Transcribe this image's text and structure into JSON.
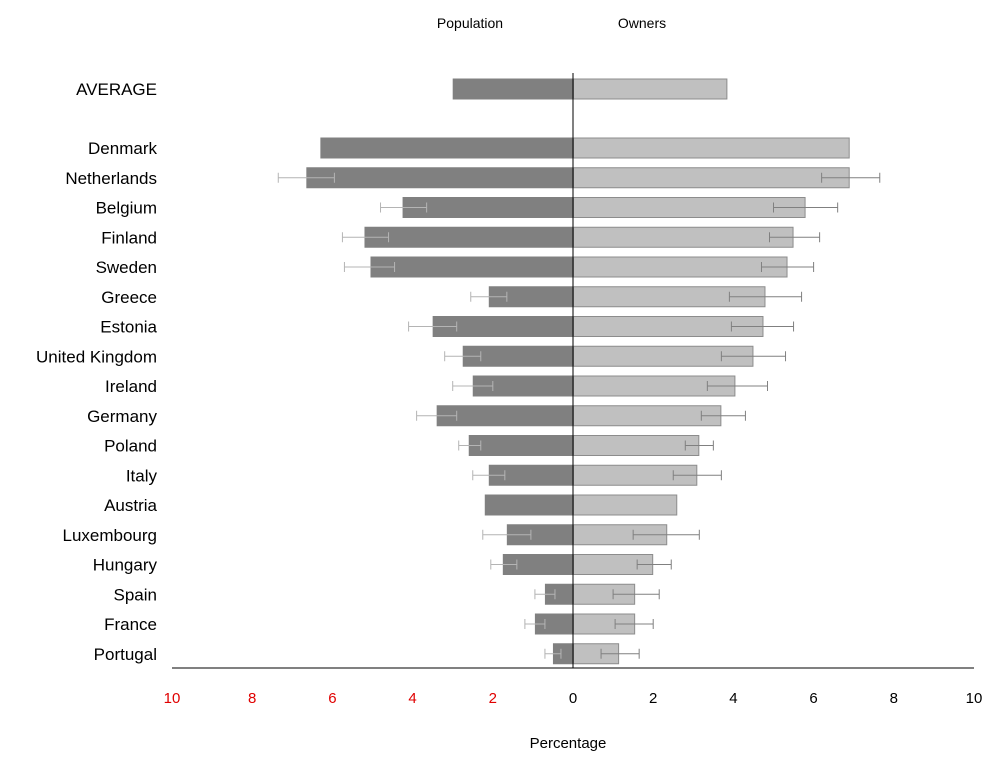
{
  "chart_data": {
    "type": "bar",
    "orientation": "horizontal-butterfly",
    "title": "",
    "xlabel": "Percentage",
    "ylabel": "",
    "xlim": [
      -10,
      10
    ],
    "xticks": [
      -10,
      -8,
      -6,
      -4,
      -2,
      0,
      2,
      4,
      6,
      8,
      10
    ],
    "xtick_labels": [
      "10",
      "8",
      "6",
      "4",
      "2",
      "0",
      "2",
      "4",
      "6",
      "8",
      "10"
    ],
    "grid": false,
    "legend": "top",
    "colors": {
      "population": "#808080",
      "owners": "#c0c0c0",
      "owners_stroke": "#8c8c8c",
      "negative_tick_labels": "#e00000",
      "positive_tick_labels": "#000000",
      "axis": "#000000",
      "error_bar_population": "#b4b4b4",
      "error_bar_owners": "#808080"
    },
    "average": {
      "label": "AVERAGE",
      "population": 3.0,
      "owners": 3.85
    },
    "categories": [
      "Denmark",
      "Netherlands",
      "Belgium",
      "Finland",
      "Sweden",
      "Greece",
      "Estonia",
      "United Kingdom",
      "Ireland",
      "Germany",
      "Poland",
      "Italy",
      "Austria",
      "Luxembourg",
      "Hungary",
      "Spain",
      "France",
      "Portugal"
    ],
    "series": [
      {
        "name": "Population",
        "values": [
          6.3,
          6.65,
          4.25,
          5.2,
          5.05,
          2.1,
          3.5,
          2.75,
          2.5,
          3.4,
          2.6,
          2.1,
          2.2,
          1.65,
          1.75,
          0.7,
          0.95,
          0.5
        ],
        "error_low": [
          null,
          7.35,
          4.8,
          5.75,
          5.7,
          2.55,
          4.1,
          3.2,
          3.0,
          3.9,
          2.85,
          2.5,
          null,
          2.25,
          2.05,
          0.95,
          1.2,
          0.7
        ],
        "error_high": [
          null,
          5.95,
          3.65,
          4.6,
          4.45,
          1.65,
          2.9,
          2.3,
          2.0,
          2.9,
          2.3,
          1.7,
          null,
          1.05,
          1.4,
          0.45,
          0.7,
          0.3
        ]
      },
      {
        "name": "Owners",
        "values": [
          6.9,
          6.9,
          5.8,
          5.5,
          5.35,
          4.8,
          4.75,
          4.5,
          4.05,
          3.7,
          3.15,
          3.1,
          2.6,
          2.35,
          2.0,
          1.55,
          1.55,
          1.15
        ],
        "error_low": [
          null,
          6.2,
          5.0,
          4.9,
          4.7,
          3.9,
          3.95,
          3.7,
          3.35,
          3.2,
          2.8,
          2.5,
          null,
          1.5,
          1.6,
          1.0,
          1.05,
          0.7
        ],
        "error_high": [
          null,
          7.65,
          6.6,
          6.15,
          6.0,
          5.7,
          5.5,
          5.3,
          4.85,
          4.3,
          3.5,
          3.7,
          null,
          3.15,
          2.45,
          2.15,
          2.0,
          1.65
        ]
      }
    ]
  }
}
